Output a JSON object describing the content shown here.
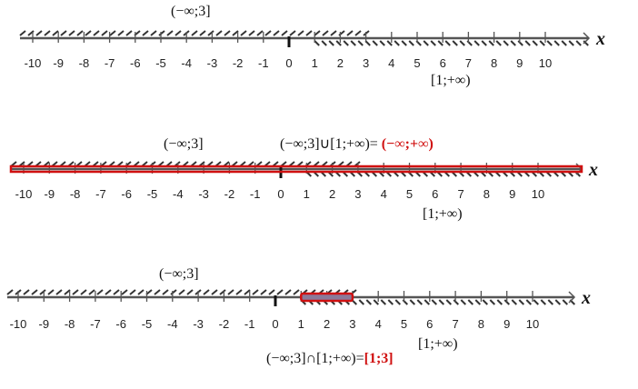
{
  "ticks": [
    "-10",
    "-9",
    "-8",
    "-7",
    "-6",
    "-5",
    "-4",
    "-3",
    "-2",
    "-1",
    "0",
    "1",
    "2",
    "3",
    "4",
    "5",
    "6",
    "7",
    "8",
    "9",
    "10"
  ],
  "axis_label": "x",
  "colors": {
    "axis": "#555555",
    "hatch": "#333333",
    "highlight": "#d01010"
  },
  "panels": [
    {
      "left_set": "(−∞;3]",
      "right_set": "[1;+∞)"
    },
    {
      "left_set": "(−∞;3]",
      "right_set": "[1;+∞)",
      "operation": "(−∞;3]∪[1;+∞)= ",
      "result": "(−∞;+∞)"
    },
    {
      "left_set": "(−∞;3]",
      "right_set": "[1;+∞)",
      "operation": "(−∞;3]∩[1;+∞)=",
      "result": "[1;3]"
    }
  ]
}
